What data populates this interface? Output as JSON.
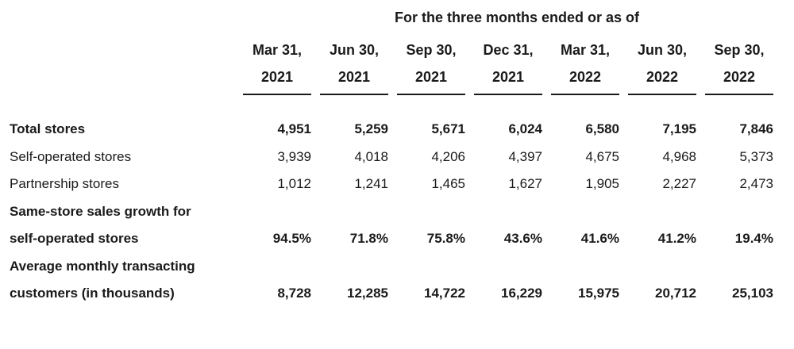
{
  "table": {
    "super_header": "For the three months ended or as of",
    "columns": [
      {
        "line1": "Mar 31,",
        "line2": "2021"
      },
      {
        "line1": "Jun 30,",
        "line2": "2021"
      },
      {
        "line1": "Sep 30,",
        "line2": "2021"
      },
      {
        "line1": "Dec 31,",
        "line2": "2021"
      },
      {
        "line1": "Mar 31,",
        "line2": "2022"
      },
      {
        "line1": "Jun 30,",
        "line2": "2022"
      },
      {
        "line1": "Sep 30,",
        "line2": "2022"
      }
    ],
    "rows": [
      {
        "label": "Total stores",
        "bold": true,
        "values": [
          "4,951",
          "5,259",
          "5,671",
          "6,024",
          "6,580",
          "7,195",
          "7,846"
        ]
      },
      {
        "label": "Self-operated stores",
        "bold": false,
        "values": [
          "3,939",
          "4,018",
          "4,206",
          "4,397",
          "4,675",
          "4,968",
          "5,373"
        ]
      },
      {
        "label": "Partnership stores",
        "bold": false,
        "values": [
          "1,012",
          "1,241",
          "1,465",
          "1,627",
          "1,905",
          "2,227",
          "2,473"
        ]
      },
      {
        "label": "Same-store sales growth for",
        "bold": true,
        "values": []
      },
      {
        "label": "self-operated stores",
        "bold": true,
        "values": [
          "94.5%",
          "71.8%",
          "75.8%",
          "43.6%",
          "41.6%",
          "41.2%",
          "19.4%"
        ]
      },
      {
        "label": "Average monthly transacting",
        "bold": true,
        "values": []
      },
      {
        "label": "customers (in thousands)",
        "bold": true,
        "values": [
          "8,728",
          "12,285",
          "14,722",
          "16,229",
          "15,975",
          "20,712",
          "25,103"
        ]
      }
    ]
  }
}
